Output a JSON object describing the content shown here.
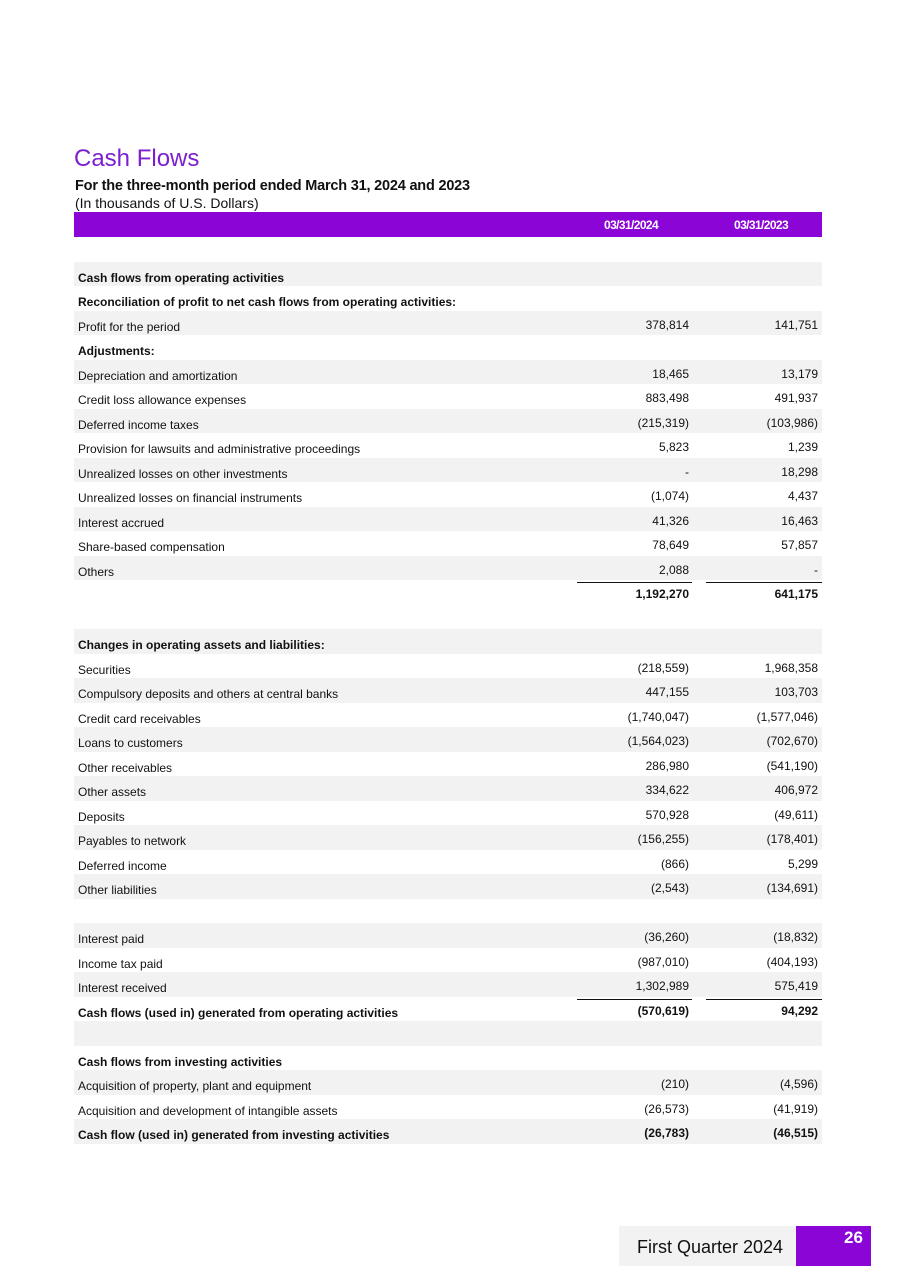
{
  "title": "Cash Flows",
  "subtitle": "For the three-month period ended March 31, 2024 and 2023",
  "units": "(In thousands of U.S. Dollars)",
  "columns": [
    "03/31/2024",
    "03/31/2023"
  ],
  "rows": [
    {
      "label": "",
      "v1": "",
      "v2": "",
      "shaded": false
    },
    {
      "label": "Cash flows from operating activities",
      "v1": "",
      "v2": "",
      "shaded": true,
      "bold": true
    },
    {
      "label": "Reconciliation of profit to net cash flows from operating activities:",
      "v1": "",
      "v2": "",
      "shaded": false,
      "bold": true
    },
    {
      "label": "Profit for the period",
      "v1": "378,814",
      "v2": "141,751",
      "shaded": true
    },
    {
      "label": "Adjustments:",
      "v1": "",
      "v2": "",
      "shaded": false,
      "bold": true
    },
    {
      "label": "Depreciation and amortization",
      "v1": "18,465",
      "v2": "13,179",
      "shaded": true
    },
    {
      "label": "Credit loss allowance expenses",
      "v1": "883,498",
      "v2": "491,937",
      "shaded": false
    },
    {
      "label": "Deferred income taxes",
      "v1": "(215,319)",
      "v2": "(103,986)",
      "shaded": true
    },
    {
      "label": "Provision for lawsuits and administrative proceedings",
      "v1": "5,823",
      "v2": "1,239",
      "shaded": false
    },
    {
      "label": "Unrealized losses on other investments",
      "v1": "-",
      "v2": "18,298",
      "shaded": true
    },
    {
      "label": "Unrealized losses on financial instruments",
      "v1": "(1,074)",
      "v2": "4,437",
      "shaded": false
    },
    {
      "label": "Interest accrued",
      "v1": "41,326",
      "v2": "16,463",
      "shaded": true
    },
    {
      "label": "Share-based compensation",
      "v1": "78,649",
      "v2": "57,857",
      "shaded": false
    },
    {
      "label": "Others",
      "v1": "2,088",
      "v2": "-",
      "shaded": true
    },
    {
      "label": "",
      "v1": "1,192,270",
      "v2": "641,175",
      "shaded": false,
      "bold": true,
      "total": true
    },
    {
      "label": "",
      "v1": "",
      "v2": "",
      "shaded": false
    },
    {
      "label": "Changes in operating assets and liabilities:",
      "v1": "",
      "v2": "",
      "shaded": true,
      "bold": true
    },
    {
      "label": "Securities",
      "v1": "(218,559)",
      "v2": "1,968,358",
      "shaded": false
    },
    {
      "label": "Compulsory deposits and others at central banks",
      "v1": "447,155",
      "v2": "103,703",
      "shaded": true
    },
    {
      "label": "Credit card receivables",
      "v1": "(1,740,047)",
      "v2": "(1,577,046)",
      "shaded": false
    },
    {
      "label": "Loans to customers",
      "v1": "(1,564,023)",
      "v2": "(702,670)",
      "shaded": true
    },
    {
      "label": "Other receivables",
      "v1": "286,980",
      "v2": "(541,190)",
      "shaded": false
    },
    {
      "label": "Other assets",
      "v1": "334,622",
      "v2": "406,972",
      "shaded": true
    },
    {
      "label": "Deposits",
      "v1": "570,928",
      "v2": "(49,611)",
      "shaded": false
    },
    {
      "label": "Payables to network",
      "v1": "(156,255)",
      "v2": "(178,401)",
      "shaded": true
    },
    {
      "label": "Deferred income",
      "v1": "(866)",
      "v2": "5,299",
      "shaded": false
    },
    {
      "label": "Other liabilities",
      "v1": "(2,543)",
      "v2": "(134,691)",
      "shaded": true
    },
    {
      "label": "",
      "v1": "",
      "v2": "",
      "shaded": false
    },
    {
      "label": "Interest paid",
      "v1": "(36,260)",
      "v2": "(18,832)",
      "shaded": true
    },
    {
      "label": "Income tax paid",
      "v1": "(987,010)",
      "v2": "(404,193)",
      "shaded": false
    },
    {
      "label": "Interest received",
      "v1": "1,302,989",
      "v2": "575,419",
      "shaded": true
    },
    {
      "label": "Cash flows (used in) generated from operating activities",
      "v1": "(570,619)",
      "v2": "94,292",
      "shaded": false,
      "bold": true,
      "total": true
    },
    {
      "label": "",
      "v1": "",
      "v2": "",
      "shaded": true
    },
    {
      "label": "Cash flows from investing activities",
      "v1": "",
      "v2": "",
      "shaded": false,
      "bold": true
    },
    {
      "label": "Acquisition of property, plant and equipment",
      "v1": "(210)",
      "v2": "(4,596)",
      "shaded": true
    },
    {
      "label": "Acquisition and development of intangible assets",
      "v1": "(26,573)",
      "v2": "(41,919)",
      "shaded": false
    },
    {
      "label": "Cash flow (used in) generated from investing activities",
      "v1": "(26,783)",
      "v2": "(46,515)",
      "shaded": true,
      "bold": true
    }
  ],
  "footer": {
    "report": "First Quarter 2024",
    "page": "26"
  }
}
